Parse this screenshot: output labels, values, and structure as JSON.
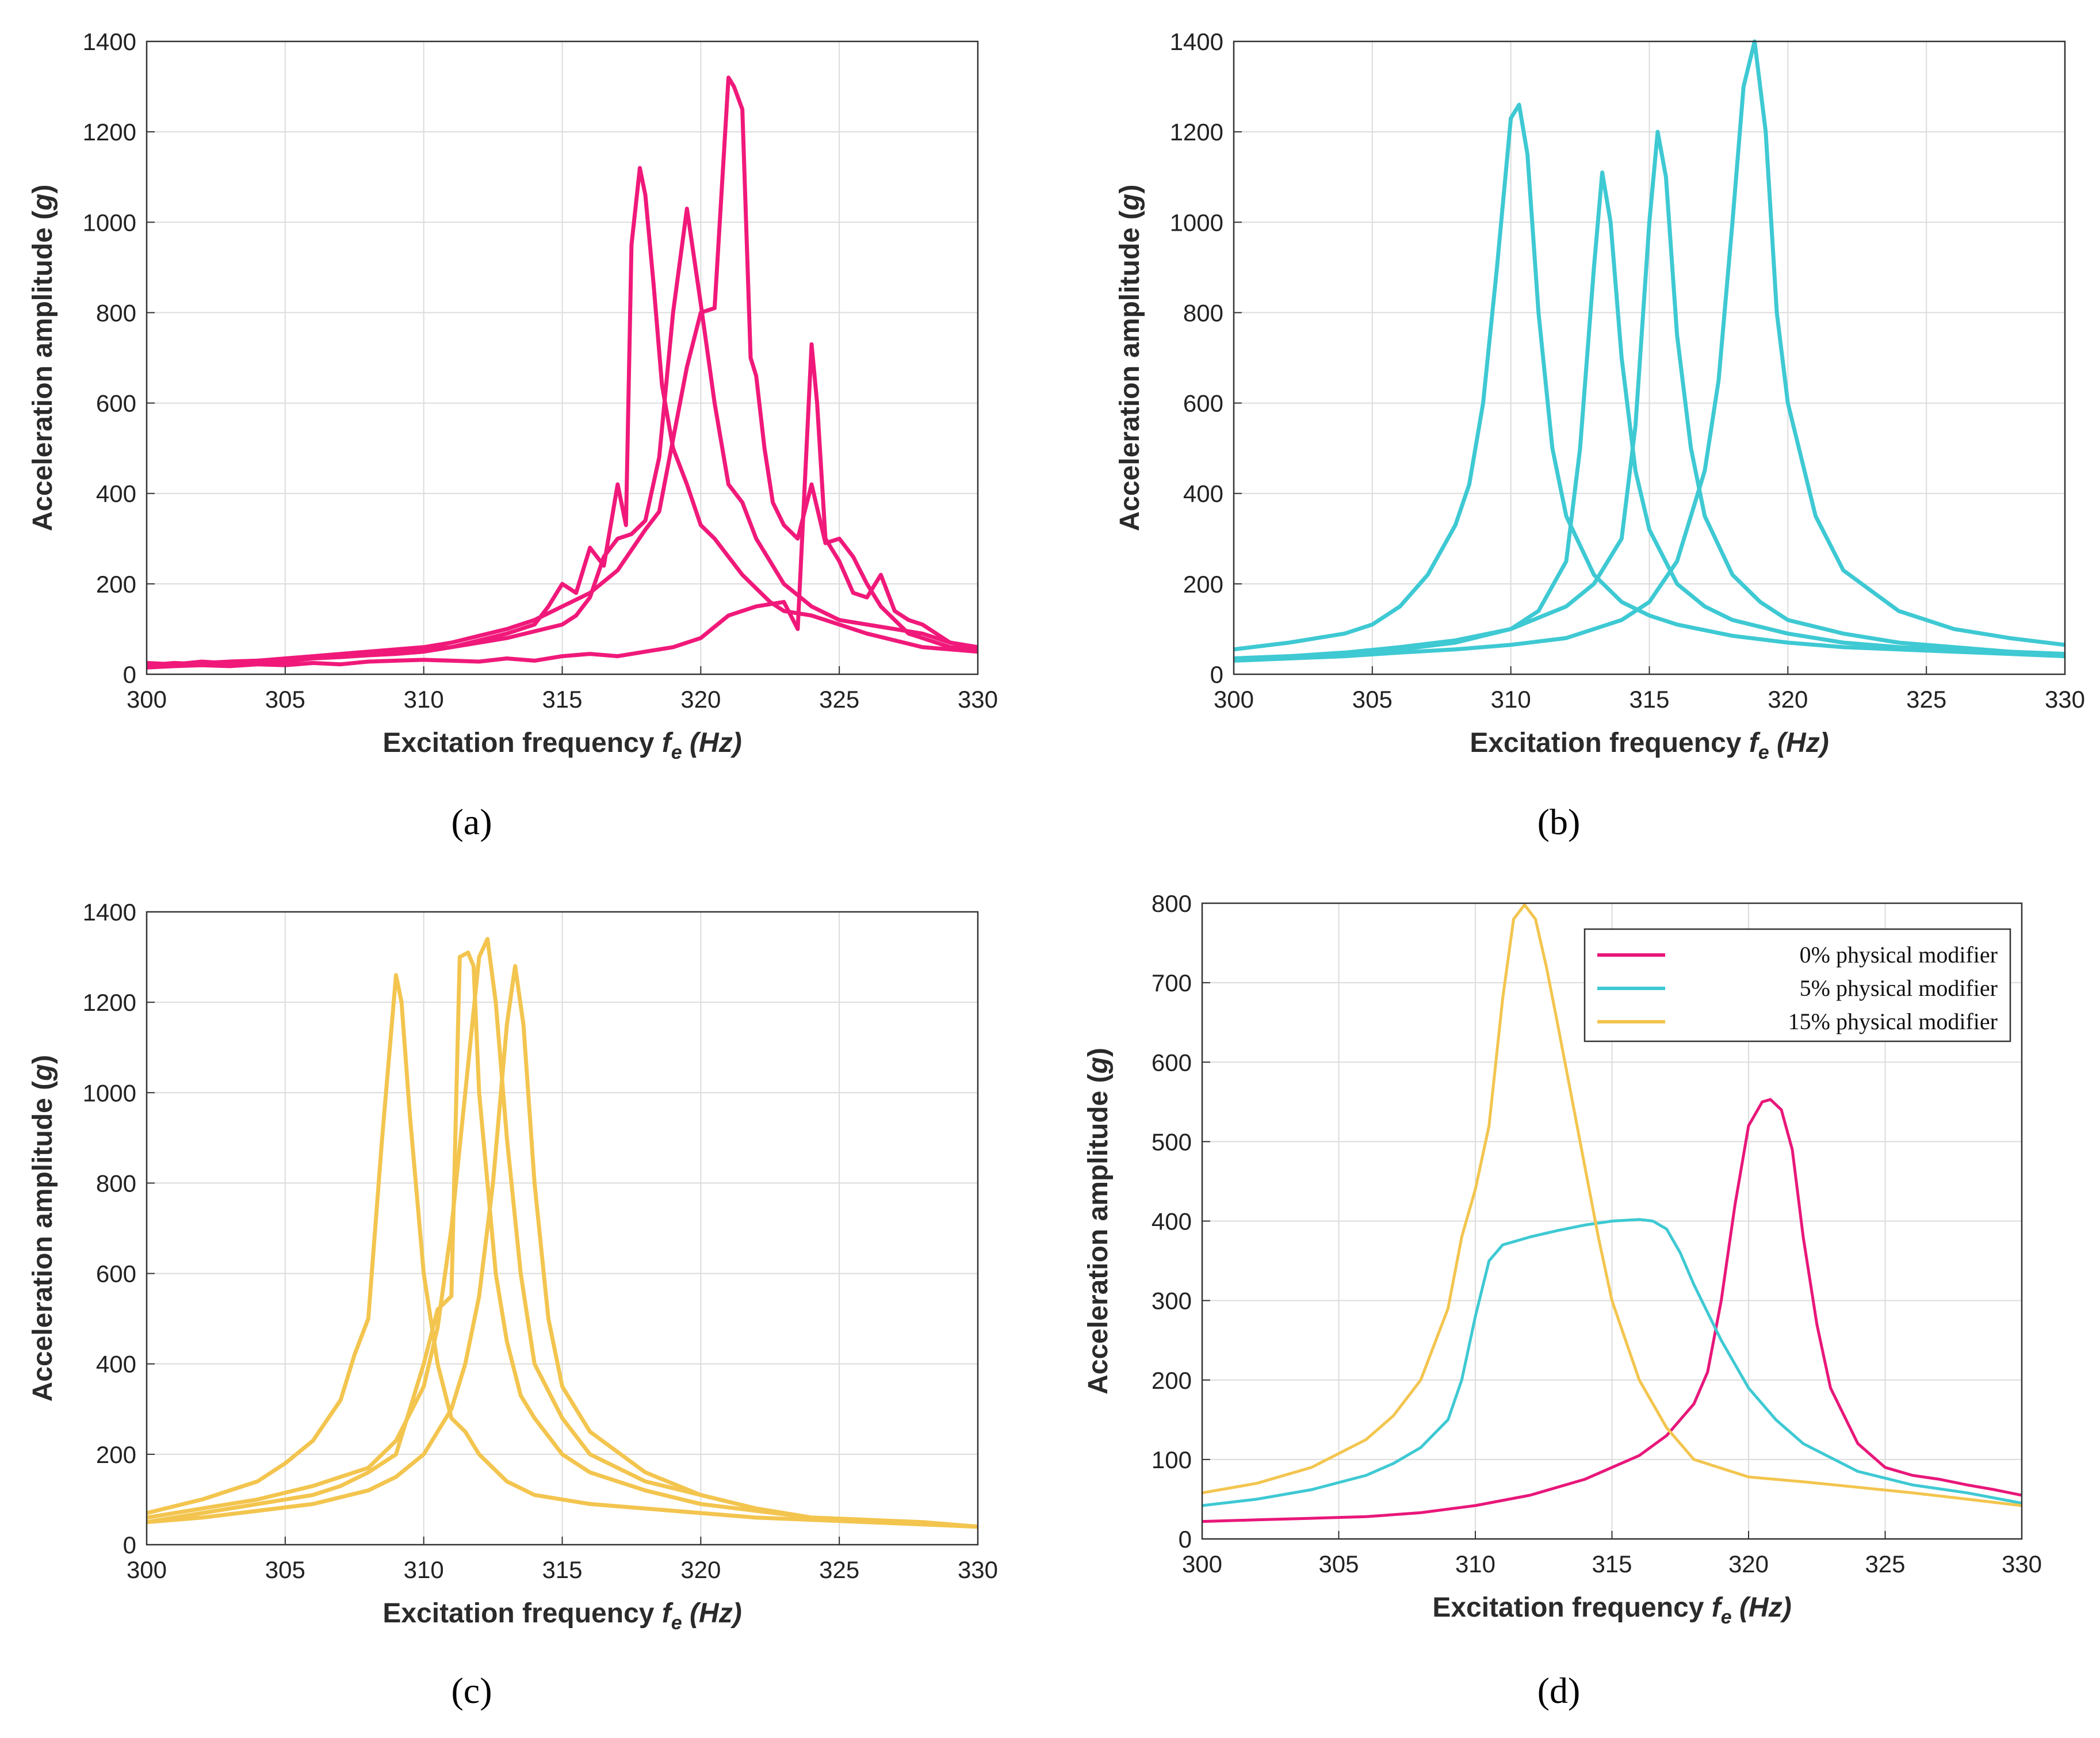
{
  "panel_labels": [
    "(a)",
    "(b)",
    "(c)",
    "(d)"
  ],
  "chart_data": [
    {
      "type": "line",
      "panel": "(a)",
      "xlabel_main": "Excitation frequency ",
      "xlabel_var": "f",
      "xlabel_sub": "e",
      "xlabel_unit": " (Hz)",
      "ylabel_main": "Acceleration amplitude (",
      "ylabel_var": "g",
      "ylabel_close": ")",
      "xlim": [
        300,
        330
      ],
      "ylim": [
        0,
        1400
      ],
      "xticks": [
        300,
        305,
        310,
        315,
        320,
        325,
        330
      ],
      "yticks": [
        0,
        200,
        400,
        600,
        800,
        1000,
        1200,
        1400
      ],
      "grid": true,
      "color": "#f0197a",
      "series": [
        {
          "x": [
            300,
            301,
            302,
            303,
            304,
            305,
            306,
            307,
            308,
            309,
            310,
            311,
            312,
            313,
            314,
            314.5,
            315,
            315.5,
            316,
            316.5,
            317,
            317.3,
            317.5,
            317.8,
            318,
            318.3,
            318.6,
            319,
            319.5,
            320,
            320.5,
            321,
            321.5,
            322,
            322.5,
            323,
            324,
            325,
            326,
            327,
            328,
            329,
            330
          ],
          "y": [
            25,
            22,
            28,
            24,
            30,
            28,
            35,
            38,
            42,
            45,
            50,
            60,
            75,
            90,
            110,
            150,
            200,
            180,
            280,
            240,
            420,
            330,
            950,
            1120,
            1060,
            860,
            640,
            500,
            420,
            330,
            300,
            260,
            220,
            190,
            160,
            140,
            130,
            110,
            90,
            75,
            60,
            55,
            50
          ]
        },
        {
          "x": [
            300,
            301,
            302,
            303,
            304,
            305,
            306,
            307,
            308,
            309,
            310,
            311,
            312,
            313,
            314,
            315,
            315.5,
            316,
            316.5,
            317,
            317.5,
            318,
            318.5,
            319,
            319.5,
            320,
            320.5,
            321,
            321.5,
            322,
            322.5,
            323,
            324,
            325,
            326,
            327,
            328,
            329,
            330
          ],
          "y": [
            20,
            25,
            22,
            28,
            30,
            32,
            36,
            40,
            46,
            50,
            55,
            60,
            70,
            80,
            95,
            110,
            130,
            170,
            260,
            300,
            310,
            340,
            480,
            800,
            1030,
            820,
            600,
            420,
            380,
            300,
            250,
            200,
            150,
            120,
            110,
            100,
            90,
            70,
            60
          ]
        },
        {
          "x": [
            300,
            301,
            302,
            303,
            304,
            305,
            306,
            307,
            308,
            309,
            310,
            311,
            312,
            313,
            314,
            315,
            316,
            317,
            318,
            318.5,
            319,
            319.5,
            320,
            320.5,
            321,
            321.2,
            321.5,
            321.8,
            322,
            322.3,
            322.6,
            323,
            323.5,
            324,
            324.5,
            325,
            325.5,
            326,
            326.5,
            327,
            327.5,
            328,
            329,
            330
          ],
          "y": [
            20,
            22,
            25,
            28,
            30,
            35,
            40,
            45,
            50,
            55,
            60,
            70,
            85,
            100,
            120,
            150,
            180,
            230,
            320,
            360,
            520,
            680,
            800,
            810,
            1320,
            1300,
            1250,
            700,
            660,
            500,
            380,
            330,
            300,
            420,
            290,
            300,
            260,
            200,
            150,
            120,
            90,
            80,
            60,
            55
          ]
        },
        {
          "x": [
            300,
            301,
            302,
            303,
            304,
            305,
            306,
            307,
            308,
            309,
            310,
            311,
            312,
            313,
            314,
            315,
            316,
            317,
            318,
            319,
            320,
            321,
            322,
            323,
            323.5,
            324,
            324.2,
            324.5,
            325,
            325.5,
            326,
            326.5,
            327,
            327.5,
            328,
            329,
            330
          ],
          "y": [
            15,
            18,
            20,
            18,
            22,
            20,
            25,
            22,
            28,
            30,
            32,
            30,
            28,
            35,
            30,
            40,
            45,
            40,
            50,
            60,
            80,
            130,
            150,
            160,
            100,
            730,
            600,
            300,
            250,
            180,
            170,
            220,
            140,
            120,
            110,
            70,
            60
          ]
        }
      ]
    },
    {
      "type": "line",
      "panel": "(b)",
      "xlabel_main": "Excitation frequency ",
      "xlabel_var": "f",
      "xlabel_sub": "e",
      "xlabel_unit": " (Hz)",
      "ylabel_main": "Acceleration amplitude (",
      "ylabel_var": "g",
      "ylabel_close": ")",
      "xlim": [
        300,
        330
      ],
      "ylim": [
        0,
        1400
      ],
      "xticks": [
        300,
        305,
        310,
        315,
        320,
        325,
        330
      ],
      "yticks": [
        0,
        200,
        400,
        600,
        800,
        1000,
        1200,
        1400
      ],
      "grid": true,
      "color": "#3ec9d3",
      "series": [
        {
          "x": [
            300,
            302,
            304,
            305,
            306,
            307,
            308,
            308.5,
            309,
            309.5,
            310,
            310.3,
            310.6,
            311,
            311.5,
            312,
            313,
            314,
            315,
            316,
            318,
            320,
            322,
            324,
            326,
            328,
            330
          ],
          "y": [
            55,
            70,
            90,
            110,
            150,
            220,
            330,
            420,
            600,
            900,
            1230,
            1260,
            1150,
            800,
            500,
            350,
            220,
            160,
            130,
            110,
            85,
            70,
            60,
            55,
            50,
            45,
            40
          ]
        },
        {
          "x": [
            300,
            302,
            304,
            306,
            308,
            310,
            311,
            312,
            312.5,
            313,
            313.3,
            313.6,
            314,
            314.5,
            315,
            316,
            317,
            318,
            320,
            322,
            324,
            326,
            328,
            330
          ],
          "y": [
            35,
            40,
            45,
            55,
            70,
            100,
            140,
            250,
            500,
            900,
            1110,
            1000,
            700,
            450,
            320,
            200,
            150,
            120,
            90,
            70,
            60,
            55,
            50,
            40
          ]
        },
        {
          "x": [
            300,
            302,
            304,
            306,
            308,
            310,
            312,
            313,
            314,
            314.5,
            315,
            315.3,
            315.6,
            316,
            316.5,
            317,
            318,
            319,
            320,
            322,
            324,
            326,
            328,
            330
          ],
          "y": [
            35,
            40,
            48,
            60,
            75,
            100,
            150,
            200,
            300,
            550,
            1000,
            1200,
            1100,
            750,
            500,
            350,
            220,
            160,
            120,
            90,
            70,
            60,
            50,
            45
          ]
        },
        {
          "x": [
            300,
            302,
            304,
            306,
            308,
            310,
            312,
            314,
            315,
            316,
            317,
            317.5,
            318,
            318.4,
            318.8,
            319.2,
            319.6,
            320,
            321,
            322,
            324,
            326,
            328,
            330
          ],
          "y": [
            30,
            35,
            40,
            48,
            55,
            65,
            80,
            120,
            160,
            250,
            450,
            650,
            1000,
            1300,
            1400,
            1200,
            800,
            600,
            350,
            230,
            140,
            100,
            80,
            65
          ]
        }
      ]
    },
    {
      "type": "line",
      "panel": "(c)",
      "xlabel_main": "Excitation frequency ",
      "xlabel_var": "f",
      "xlabel_sub": "e",
      "xlabel_unit": " (Hz)",
      "ylabel_main": "Acceleration amplitude (",
      "ylabel_var": "g",
      "ylabel_close": ")",
      "xlim": [
        300,
        330
      ],
      "ylim": [
        0,
        1400
      ],
      "xticks": [
        300,
        305,
        310,
        315,
        320,
        325,
        330
      ],
      "yticks": [
        0,
        200,
        400,
        600,
        800,
        1000,
        1200,
        1400
      ],
      "grid": true,
      "color": "#f3c54f",
      "series": [
        {
          "x": [
            300,
            302,
            304,
            305,
            306,
            307,
            307.5,
            308,
            308.5,
            309,
            309.2,
            309.5,
            310,
            310.5,
            311,
            311.5,
            312,
            313,
            314,
            316,
            318,
            320,
            322,
            324,
            326,
            328,
            330
          ],
          "y": [
            70,
            100,
            140,
            180,
            230,
            320,
            420,
            500,
            900,
            1260,
            1200,
            950,
            600,
            400,
            280,
            250,
            200,
            140,
            110,
            90,
            80,
            70,
            60,
            55,
            50,
            45,
            40
          ]
        },
        {
          "x": [
            300,
            302,
            304,
            306,
            307,
            308,
            309,
            310,
            310.5,
            311,
            311.3,
            311.6,
            311.8,
            312,
            312.3,
            312.6,
            313,
            313.5,
            314,
            315,
            316,
            318,
            320,
            322,
            324,
            326,
            328,
            330
          ],
          "y": [
            50,
            70,
            90,
            110,
            130,
            160,
            200,
            400,
            520,
            550,
            1300,
            1310,
            1280,
            1000,
            800,
            600,
            450,
            330,
            280,
            200,
            160,
            120,
            90,
            75,
            60,
            50,
            45,
            40
          ]
        },
        {
          "x": [
            300,
            302,
            304,
            306,
            308,
            309,
            310,
            310.5,
            311,
            311.5,
            312,
            312.3,
            312.6,
            313,
            313.5,
            314,
            315,
            316,
            318,
            320,
            322,
            324,
            326,
            328,
            330
          ],
          "y": [
            60,
            80,
            100,
            130,
            170,
            230,
            350,
            480,
            700,
            1000,
            1300,
            1340,
            1200,
            900,
            600,
            400,
            280,
            200,
            140,
            110,
            80,
            60,
            55,
            50,
            40
          ]
        },
        {
          "x": [
            300,
            302,
            304,
            306,
            308,
            309,
            310,
            311,
            311.5,
            312,
            312.5,
            313,
            313.3,
            313.6,
            314,
            314.5,
            315,
            316,
            318,
            320,
            322,
            324,
            326,
            328,
            330
          ],
          "y": [
            50,
            60,
            75,
            90,
            120,
            150,
            200,
            300,
            400,
            550,
            800,
            1150,
            1280,
            1150,
            800,
            500,
            350,
            250,
            160,
            110,
            80,
            60,
            55,
            45,
            40
          ]
        }
      ]
    },
    {
      "type": "line",
      "panel": "(d)",
      "xlabel_main": "Excitation frequency ",
      "xlabel_var": "f",
      "xlabel_sub": "e",
      "xlabel_unit": " (Hz)",
      "ylabel_main": "Acceleration amplitude (",
      "ylabel_var": "g",
      "ylabel_close": ")",
      "xlim": [
        300,
        330
      ],
      "ylim": [
        0,
        800
      ],
      "xticks": [
        300,
        305,
        310,
        315,
        320,
        325,
        330
      ],
      "yticks": [
        0,
        100,
        200,
        300,
        400,
        500,
        600,
        700,
        800
      ],
      "grid": true,
      "legend_position": "top-right",
      "series": [
        {
          "name": "0% physical modifier",
          "color": "#e8177a",
          "x": [
            300,
            302,
            304,
            306,
            308,
            310,
            312,
            314,
            316,
            317,
            318,
            318.5,
            319,
            319.5,
            320,
            320.5,
            320.8,
            321.2,
            321.6,
            322,
            322.5,
            323,
            324,
            325,
            326,
            327,
            328,
            329,
            330
          ],
          "y": [
            22,
            24,
            26,
            28,
            33,
            42,
            55,
            75,
            105,
            130,
            170,
            210,
            300,
            420,
            520,
            550,
            553,
            540,
            490,
            380,
            270,
            190,
            120,
            90,
            80,
            75,
            68,
            62,
            55
          ]
        },
        {
          "name": "5% physical modifier",
          "color": "#3ec9d3",
          "x": [
            300,
            302,
            304,
            306,
            307,
            308,
            309,
            309.5,
            310,
            310.5,
            311,
            311.5,
            312,
            313,
            314,
            315,
            316,
            316.5,
            317,
            317.5,
            318,
            319,
            320,
            321,
            322,
            324,
            326,
            328,
            330
          ],
          "y": [
            42,
            50,
            62,
            80,
            95,
            115,
            150,
            200,
            280,
            350,
            370,
            375,
            380,
            388,
            395,
            400,
            402,
            400,
            390,
            360,
            320,
            250,
            190,
            150,
            120,
            85,
            68,
            58,
            45
          ]
        },
        {
          "name": "15% physical modifier",
          "color": "#f3c54f",
          "x": [
            300,
            302,
            304,
            306,
            307,
            308,
            309,
            309.5,
            310,
            310.5,
            311,
            311.4,
            311.8,
            312.2,
            312.6,
            313,
            313.5,
            314,
            314.5,
            315,
            316,
            317,
            318,
            320,
            322,
            324,
            326,
            328,
            330
          ],
          "y": [
            58,
            70,
            90,
            125,
            155,
            200,
            290,
            380,
            440,
            520,
            680,
            780,
            798,
            780,
            720,
            650,
            560,
            470,
            380,
            300,
            200,
            140,
            100,
            78,
            72,
            65,
            58,
            50,
            42
          ]
        }
      ]
    }
  ]
}
